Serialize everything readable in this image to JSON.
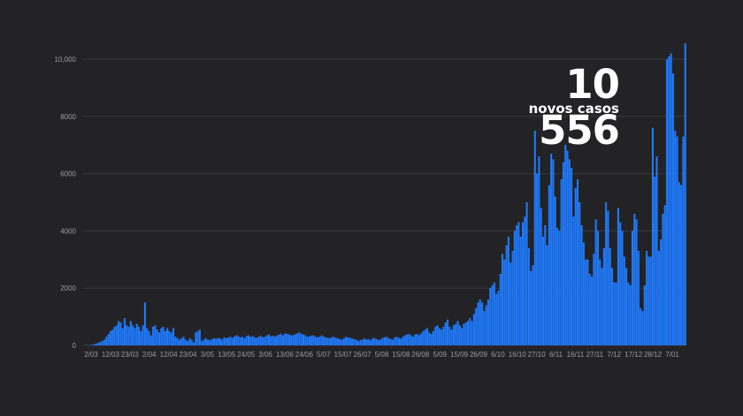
{
  "highlight": {
    "number": "10 556",
    "label": "novos casos"
  },
  "chart_data": {
    "type": "bar",
    "ylim": [
      0,
      10000
    ],
    "y_ticks": [
      0,
      2000,
      4000,
      6000,
      8000,
      10000
    ],
    "y_tick_labels": [
      "0",
      "2000",
      "4000",
      "6000",
      "8000",
      "10,000"
    ],
    "x_tick_labels": [
      "2/03",
      "12/03",
      "23/03",
      "2/04",
      "12/04",
      "23/04",
      "3/05",
      "13/05",
      "24/05",
      "3/06",
      "13/06",
      "24/06",
      "5/07",
      "15/07",
      "26/07",
      "5/08",
      "15/08",
      "26/08",
      "5/09",
      "15/09",
      "26/09",
      "6/10",
      "16/10",
      "27/10",
      "6/11",
      "16/11",
      "27/11",
      "7/12",
      "17/12",
      "28/12",
      "7/01"
    ],
    "grid": true,
    "colors": {
      "bar": "#1f7bff",
      "grid": "#3a3a3e",
      "tick": "#9a9aa3",
      "background": "#232325"
    },
    "values": [
      2,
      4,
      6,
      10,
      20,
      40,
      60,
      90,
      120,
      150,
      200,
      300,
      400,
      500,
      550,
      650,
      700,
      850,
      800,
      600,
      950,
      700,
      650,
      850,
      700,
      600,
      750,
      650,
      500,
      700,
      1500,
      600,
      500,
      350,
      650,
      700,
      550,
      450,
      600,
      650,
      500,
      600,
      500,
      450,
      600,
      300,
      250,
      200,
      250,
      300,
      200,
      150,
      250,
      200,
      100,
      450,
      500,
      550,
      150,
      200,
      250,
      200,
      180,
      220,
      250,
      230,
      260,
      240,
      200,
      280,
      250,
      270,
      300,
      260,
      310,
      350,
      320,
      280,
      300,
      250,
      330,
      350,
      300,
      330,
      280,
      260,
      300,
      330,
      280,
      300,
      350,
      380,
      320,
      330,
      300,
      350,
      380,
      400,
      350,
      420,
      400,
      380,
      350,
      360,
      390,
      420,
      450,
      400,
      380,
      350,
      300,
      320,
      330,
      350,
      300,
      280,
      310,
      350,
      300,
      280,
      260,
      250,
      280,
      300,
      260,
      240,
      220,
      200,
      250,
      300,
      280,
      260,
      240,
      220,
      200,
      150,
      180,
      200,
      240,
      200,
      220,
      180,
      240,
      260,
      220,
      180,
      200,
      260,
      280,
      300,
      250,
      220,
      200,
      280,
      300,
      260,
      240,
      300,
      350,
      380,
      400,
      350,
      300,
      380,
      400,
      360,
      420,
      500,
      550,
      600,
      450,
      400,
      500,
      650,
      700,
      600,
      550,
      650,
      800,
      900,
      650,
      550,
      700,
      750,
      850,
      700,
      600,
      750,
      800,
      850,
      950,
      850,
      1100,
      1300,
      1500,
      1600,
      1500,
      1200,
      1400,
      1600,
      2000,
      2100,
      2200,
      1800,
      1900,
      2500,
      3200,
      3000,
      3500,
      3800,
      2900,
      3300,
      4000,
      4200,
      4300,
      3800,
      4300,
      4500,
      5000,
      3400,
      2600,
      2800,
      7500,
      6000,
      6600,
      4800,
      3800,
      4200,
      3500,
      5600,
      6700,
      6500,
      5200,
      4100,
      4000,
      5800,
      6400,
      7000,
      6800,
      6500,
      6200,
      4500,
      5500,
      5800,
      5000,
      4200,
      3600,
      3000,
      3000,
      2500,
      2400,
      3200,
      4400,
      4000,
      3000,
      2700,
      3400,
      5000,
      4700,
      3400,
      2700,
      2200,
      2200,
      4800,
      4300,
      4000,
      3100,
      2700,
      2200,
      2100,
      4000,
      4600,
      4400,
      3300,
      1300,
      1200,
      2100,
      3300,
      3100,
      3100,
      7600,
      5900,
      6600,
      3300,
      3700,
      4600,
      4900,
      10000,
      10100,
      10200,
      9500,
      7500,
      7300,
      5700,
      5600,
      7300,
      10556
    ]
  }
}
